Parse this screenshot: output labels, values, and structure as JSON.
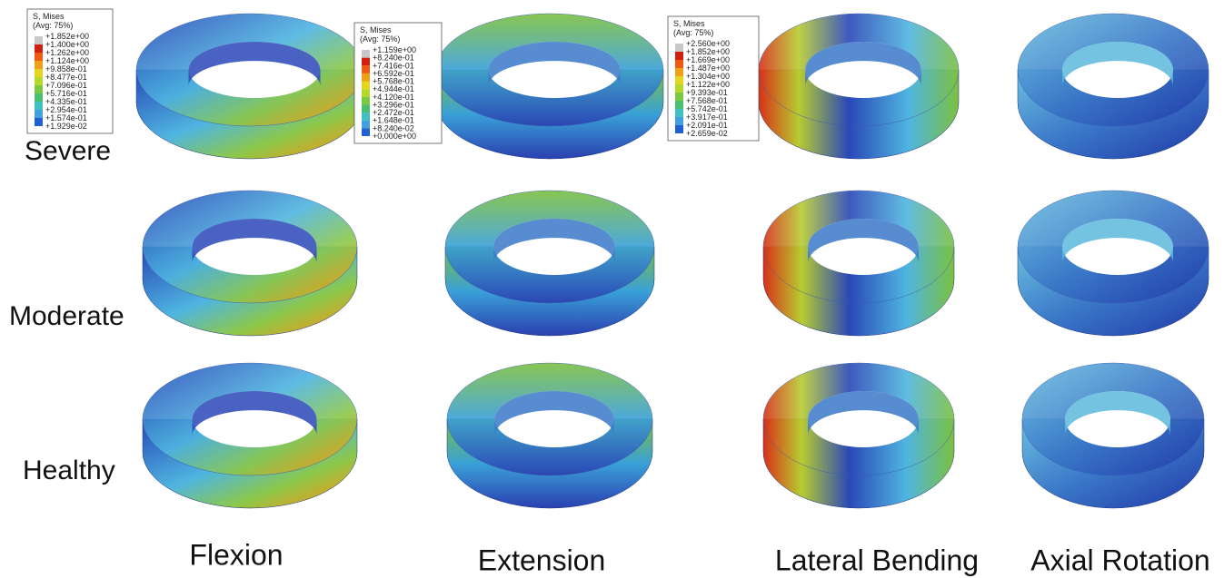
{
  "row_labels": [
    "Severe",
    "Moderate",
    "Healthy"
  ],
  "column_labels": [
    "Flexion",
    "Extension",
    "Lateral Bending",
    "Axial Rotation"
  ],
  "legends": [
    {
      "title": "S, Mises",
      "subtitle": "(Avg: 75%)",
      "values": [
        "+1.852e+00",
        "+1.400e+00",
        "+1.262e+00",
        "+1.124e+00",
        "+9.858e-01",
        "+8.477e-01",
        "+7.096e-01",
        "+5.716e-01",
        "+4.335e-01",
        "+2.954e-01",
        "+1.574e-01",
        "+1.929e-02"
      ]
    },
    {
      "title": "S, Mises",
      "subtitle": "(Avg: 75%)",
      "values": [
        "+1.159e+00",
        "+8.240e-01",
        "+7.416e-01",
        "+6.592e-01",
        "+5.768e-01",
        "+4.944e-01",
        "+4.120e-01",
        "+3.296e-01",
        "+2.472e-01",
        "+1.648e-01",
        "+8.240e-02",
        "+0.000e+00"
      ]
    },
    {
      "title": "S, Mises",
      "subtitle": "(Avg: 75%)",
      "values": [
        "+2.560e+00",
        "+1.852e+00",
        "+1.669e+00",
        "+1.487e+00",
        "+1.304e+00",
        "+1.122e+00",
        "+9.393e-01",
        "+7.568e-01",
        "+5.742e-01",
        "+3.917e-01",
        "+2.091e-01",
        "+2.659e-02"
      ]
    }
  ]
}
